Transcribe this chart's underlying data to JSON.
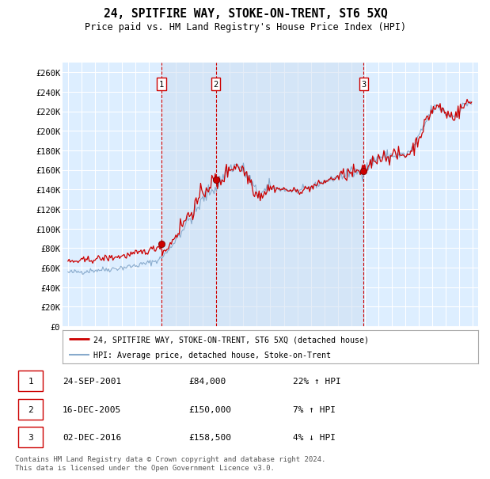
{
  "title": "24, SPITFIRE WAY, STOKE-ON-TRENT, ST6 5XQ",
  "subtitle": "Price paid vs. HM Land Registry's House Price Index (HPI)",
  "ylim": [
    0,
    270000
  ],
  "yticks": [
    0,
    20000,
    40000,
    60000,
    80000,
    100000,
    120000,
    140000,
    160000,
    180000,
    200000,
    220000,
    240000,
    260000
  ],
  "ytick_labels": [
    "£0",
    "£20K",
    "£40K",
    "£60K",
    "£80K",
    "£100K",
    "£120K",
    "£140K",
    "£160K",
    "£180K",
    "£200K",
    "£220K",
    "£240K",
    "£260K"
  ],
  "bg_color": "#ddeeff",
  "plot_bg": "#ddeeff",
  "grid_color": "#ffffff",
  "sale1_date": 2001.92,
  "sale1_price": 84000,
  "sale1_label": "1",
  "sale1_year_label": "24-SEP-2001",
  "sale1_price_label": "£84,000",
  "sale1_hpi_label": "22% ↑ HPI",
  "sale2_date": 2005.96,
  "sale2_price": 150000,
  "sale2_label": "2",
  "sale2_year_label": "16-DEC-2005",
  "sale2_price_label": "£150,000",
  "sale2_hpi_label": "7% ↑ HPI",
  "sale3_date": 2016.92,
  "sale3_price": 158500,
  "sale3_label": "3",
  "sale3_year_label": "02-DEC-2016",
  "sale3_price_label": "£158,500",
  "sale3_hpi_label": "4% ↓ HPI",
  "line_color_red": "#cc0000",
  "line_color_blue": "#88aacc",
  "vline_color": "#cc0000",
  "legend_label_red": "24, SPITFIRE WAY, STOKE-ON-TRENT, ST6 5XQ (detached house)",
  "legend_label_blue": "HPI: Average price, detached house, Stoke-on-Trent",
  "footnote": "Contains HM Land Registry data © Crown copyright and database right 2024.\nThis data is licensed under the Open Government Licence v3.0."
}
